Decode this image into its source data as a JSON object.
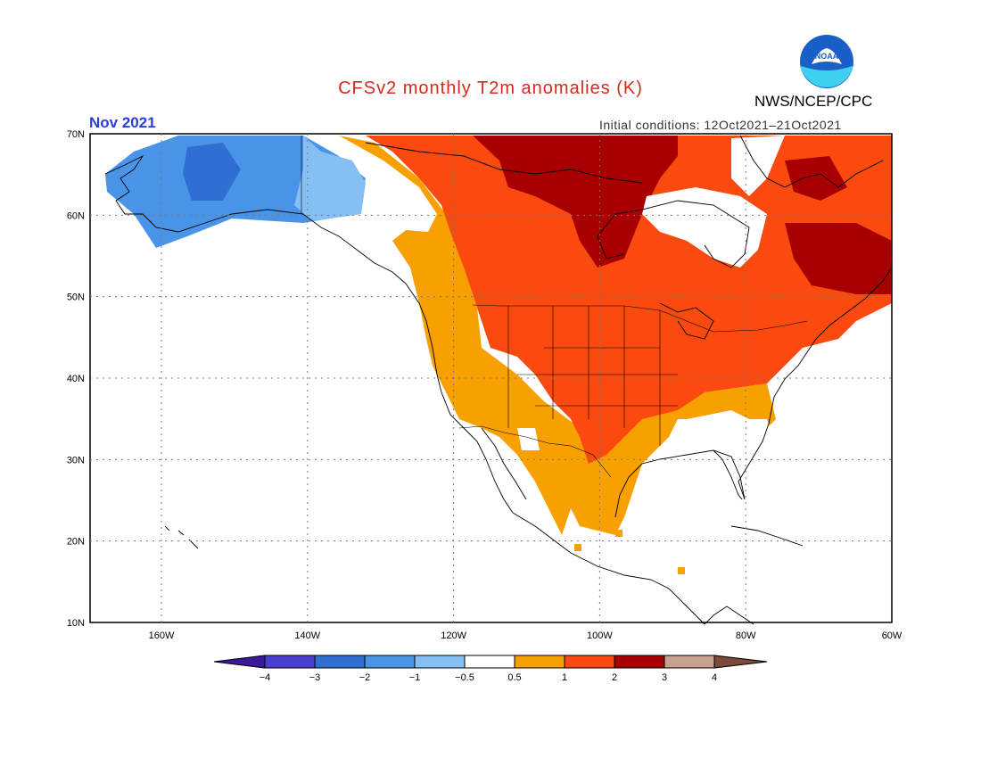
{
  "title": "CFSv2 monthly T2m anomalies (K)",
  "agency": "NWS/NCEP/CPC",
  "logo_text": "NOAA",
  "month": "Nov 2021",
  "initial_conditions": "Initial conditions: 12Oct2021–21Oct2021",
  "map": {
    "lat_labels": [
      "70N",
      "60N",
      "50N",
      "40N",
      "30N",
      "20N",
      "10N"
    ],
    "lon_labels": [
      "160W",
      "140W",
      "120W",
      "100W",
      "80W",
      "60W"
    ]
  },
  "colorbar": {
    "labels": [
      "−4",
      "−3",
      "−2",
      "−1",
      "−0.5",
      "0.5",
      "1",
      "2",
      "3",
      "4"
    ],
    "colors": [
      "#3a1a9a",
      "#4a3fd0",
      "#2f6fd4",
      "#4a94e8",
      "#86bff4",
      "#ffffff",
      "#f8a000",
      "#fa4a10",
      "#a80000",
      "#c8a090",
      "#7a4a3a"
    ]
  },
  "colors": {
    "warm1": "#f8a000",
    "warm2": "#fa4a10",
    "warm3": "#a80000",
    "cold1": "#86bff4",
    "cold2": "#4a94e8",
    "cold3": "#2f6fd4"
  }
}
